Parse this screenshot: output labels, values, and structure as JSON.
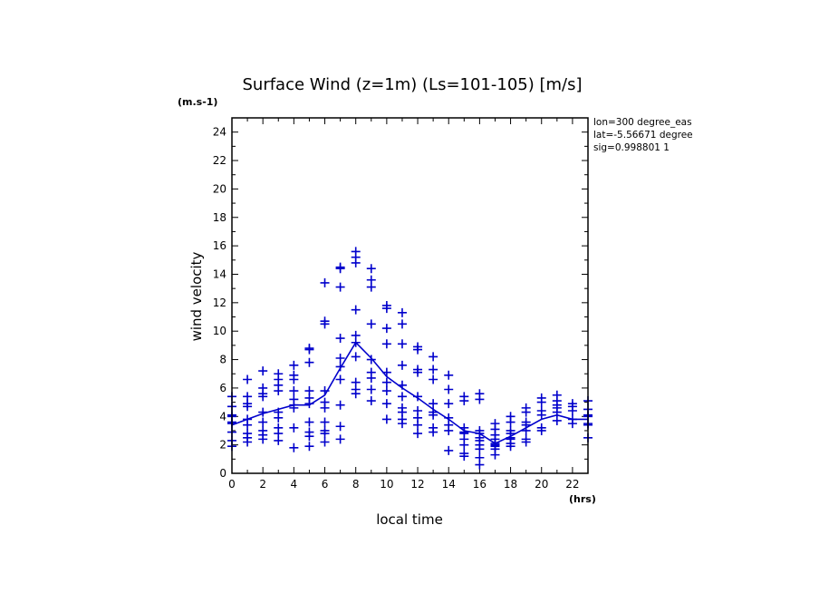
{
  "chart_data": {
    "type": "scatter",
    "title": "Surface Wind (z=1m) (Ls=101-105) [m/s]",
    "xlabel": "local time",
    "ylabel": "wind velocity",
    "x_unit": "(hrs)",
    "y_unit": "(m.s-1)",
    "xlim": [
      0,
      23
    ],
    "ylim": [
      0,
      25
    ],
    "x_ticks": [
      0,
      2,
      4,
      6,
      8,
      10,
      12,
      14,
      16,
      18,
      20,
      22
    ],
    "y_ticks": [
      0,
      2,
      4,
      6,
      8,
      10,
      12,
      14,
      16,
      18,
      20,
      22,
      24
    ],
    "info": [
      "lon=300 degree_eas",
      "lat=-5.56671 degree",
      "sig=0.998801 1"
    ],
    "color": "#0000cc",
    "mean_series": {
      "name": "mean",
      "x": [
        0,
        1,
        2,
        3,
        4,
        5,
        6,
        7,
        8,
        9,
        10,
        11,
        12,
        13,
        14,
        15,
        16,
        17,
        18,
        19,
        20,
        21,
        22,
        23
      ],
      "y": [
        3.4,
        3.8,
        4.2,
        4.5,
        4.8,
        4.8,
        5.5,
        7.4,
        9.2,
        8.1,
        6.8,
        6.0,
        5.3,
        4.5,
        3.8,
        3.0,
        2.8,
        2.1,
        2.6,
        3.2,
        3.8,
        4.1,
        3.8,
        3.8
      ]
    },
    "points": [
      [
        0,
        [
          5.4,
          4.7,
          4.1,
          4.0,
          3.6,
          3.5,
          2.9,
          2.3,
          1.9
        ]
      ],
      [
        1,
        [
          6.6,
          5.4,
          4.9,
          4.7,
          3.8,
          3.4,
          2.8,
          2.5,
          2.2
        ]
      ],
      [
        2,
        [
          7.2,
          6.0,
          5.6,
          5.4,
          4.3,
          3.6,
          3.0,
          2.7,
          2.4
        ]
      ],
      [
        3,
        [
          7.0,
          6.6,
          6.2,
          5.8,
          4.3,
          3.9,
          3.2,
          2.8,
          2.3
        ]
      ],
      [
        4,
        [
          7.6,
          6.9,
          6.6,
          5.8,
          5.2,
          4.8,
          4.6,
          3.2,
          1.8
        ]
      ],
      [
        5,
        [
          8.8,
          8.7,
          7.8,
          5.8,
          5.3,
          4.9,
          3.6,
          2.9,
          2.6,
          1.9
        ]
      ],
      [
        6,
        [
          13.4,
          10.7,
          10.5,
          5.8,
          5.0,
          4.6,
          3.6,
          3.0,
          2.8,
          2.2
        ]
      ],
      [
        7,
        [
          14.5,
          14.4,
          13.1,
          9.5,
          8.1,
          7.5,
          6.6,
          4.8,
          3.3,
          2.4
        ]
      ],
      [
        8,
        [
          15.6,
          15.2,
          14.8,
          11.5,
          9.7,
          9.2,
          8.2,
          6.4,
          5.9,
          5.6
        ]
      ],
      [
        9,
        [
          14.4,
          13.6,
          13.1,
          10.5,
          8.0,
          7.1,
          6.7,
          5.9,
          5.1
        ]
      ],
      [
        10,
        [
          11.8,
          11.6,
          10.2,
          9.1,
          7.1,
          6.4,
          5.8,
          4.9,
          3.8
        ]
      ],
      [
        11,
        [
          11.3,
          10.5,
          9.1,
          7.6,
          6.2,
          5.4,
          4.6,
          4.3,
          3.8,
          3.5
        ]
      ],
      [
        12,
        [
          8.9,
          8.7,
          7.3,
          7.1,
          5.4,
          4.4,
          3.9,
          3.4,
          2.8
        ]
      ],
      [
        13,
        [
          8.2,
          7.3,
          6.6,
          4.9,
          4.3,
          4.1,
          3.2,
          2.9
        ]
      ],
      [
        14,
        [
          6.9,
          5.9,
          4.9,
          3.9,
          3.4,
          3.0,
          1.6
        ]
      ],
      [
        15,
        [
          5.4,
          5.1,
          3.2,
          2.9,
          2.8,
          2.4,
          2.0,
          1.4,
          1.2
        ]
      ],
      [
        16,
        [
          5.6,
          5.2,
          3.0,
          2.8,
          2.5,
          2.3,
          2.0,
          1.7,
          1.1,
          0.6
        ]
      ],
      [
        17,
        [
          3.5,
          3.1,
          2.7,
          2.4,
          2.1,
          2.0,
          1.9,
          1.7,
          1.3
        ]
      ],
      [
        18,
        [
          4.0,
          3.6,
          3.0,
          2.8,
          2.5,
          2.4,
          2.1,
          1.9
        ]
      ],
      [
        19,
        [
          4.6,
          4.3,
          3.6,
          3.4,
          3.0,
          2.4,
          2.2
        ]
      ],
      [
        20,
        [
          5.3,
          5.0,
          4.4,
          4.1,
          3.2,
          3.0
        ]
      ],
      [
        21,
        [
          5.5,
          5.1,
          4.8,
          4.6,
          4.3,
          3.7
        ]
      ],
      [
        22,
        [
          4.9,
          4.7,
          4.4,
          3.8,
          3.5
        ]
      ],
      [
        23,
        [
          5.1,
          4.5,
          4.1,
          4.0,
          3.5,
          3.4,
          2.5
        ]
      ]
    ]
  }
}
